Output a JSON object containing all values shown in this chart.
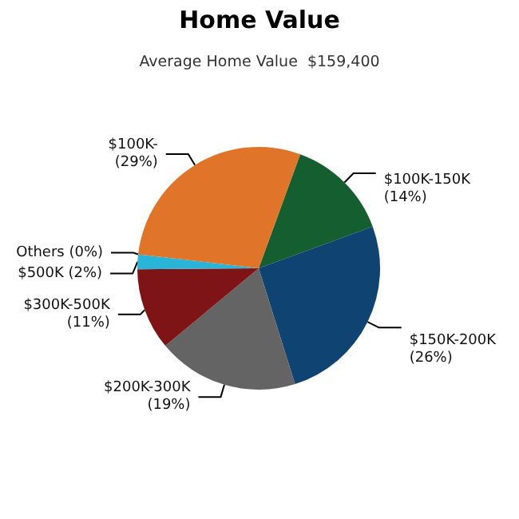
{
  "chart_data": {
    "type": "pie",
    "title": "Home Value",
    "subtitle": "Average Home Value  $159,400",
    "categories": [
      "$100K-150K",
      "$150K-200K",
      "$200K-300K",
      "$300K-500K",
      "$500K",
      "Others",
      "$100K-"
    ],
    "values": [
      14,
      26,
      19,
      11,
      2,
      0,
      29
    ],
    "value_labels": [
      "(14%)",
      "(26%)",
      "(19%)",
      "(11%)",
      "(2%)",
      "(0%)",
      "(29%)"
    ],
    "colors": [
      "#155e30",
      "#0f4372",
      "#646464",
      "#7f1416",
      "#2ab4d8",
      "#9aa0a8",
      "#e07428"
    ]
  }
}
